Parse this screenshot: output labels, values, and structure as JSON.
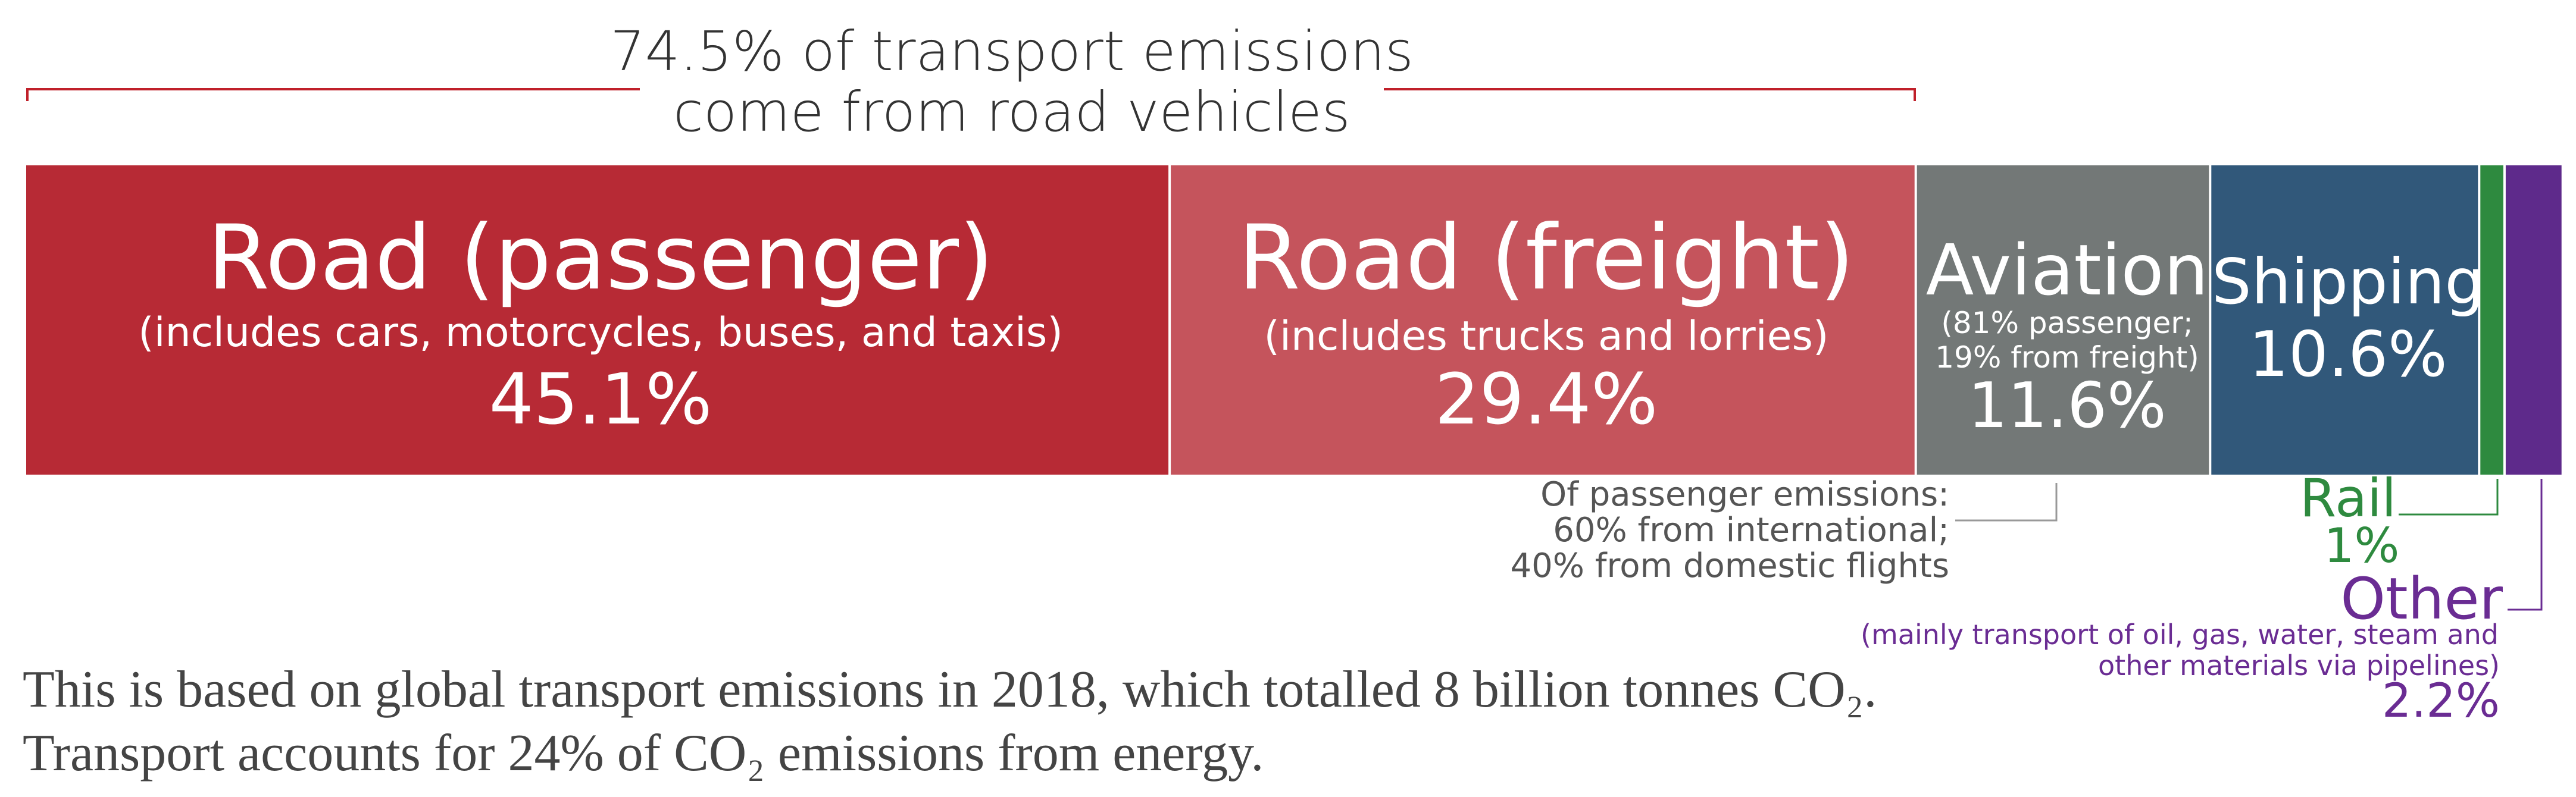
{
  "header": {
    "line1": "74.5% of transport emissions",
    "line2": "come from road vehicles"
  },
  "chart_data": {
    "type": "bar",
    "orientation": "horizontal-stacked",
    "total_percent": 100,
    "segments": [
      {
        "name": "Road (passenger)",
        "subtitle": "(includes cars, motorcycles, buses, and taxis)",
        "value": 45.1,
        "value_label": "45.1%",
        "color": "#b72a35"
      },
      {
        "name": "Road (freight)",
        "subtitle": "(includes trucks and lorries)",
        "value": 29.4,
        "value_label": "29.4%",
        "color": "#c5545c"
      },
      {
        "name": "Aviation",
        "subtitle_lines": [
          "(81% passenger;",
          "19% from freight)"
        ],
        "value": 11.6,
        "value_label": "11.6%",
        "color": "#737877"
      },
      {
        "name": "Shipping",
        "value": 10.6,
        "value_label": "10.6%",
        "color": "#31587a"
      },
      {
        "name": "Rail",
        "value": 1,
        "value_label": "1%",
        "color": "#2e8a3f"
      },
      {
        "name": "Other",
        "value": 2.2,
        "value_label": "2.2%",
        "color": "#5e2a8b"
      }
    ],
    "road_bracket_label": "74.5%"
  },
  "annotations": {
    "aviation_note": [
      "Of passenger emissions:",
      "60% from international;",
      "40% from domestic flights"
    ],
    "rail_name": "Rail",
    "rail_value": "1%",
    "other_name": "Other",
    "other_desc": [
      "(mainly transport of oil, gas, water, steam and",
      "other materials via pipelines)"
    ],
    "other_value": "2.2%"
  },
  "footer": {
    "line1": "This is based on global transport emissions in 2018, which totalled 8 billion tonnes CO₂.",
    "line2": "Transport accounts for 24% of CO₂ emissions from energy."
  },
  "colors": {
    "bracket": "#c0202a",
    "note_gray": "#555555",
    "rail_green": "#2e8a3f",
    "other_purple": "#6a2c93",
    "footer_text": "#444444"
  }
}
